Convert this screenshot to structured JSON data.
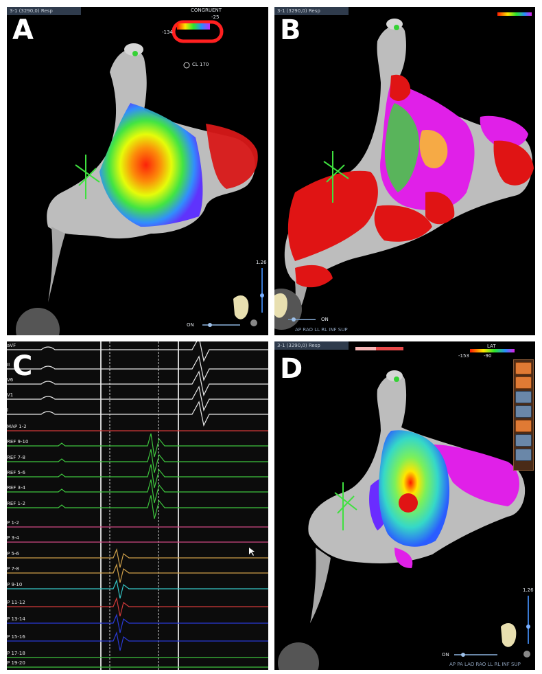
{
  "panels": {
    "a": {
      "label": "A",
      "topbar": "3-1 (3290,0) Resp",
      "legend_header": "CONGRUENT",
      "legend_max": "-25",
      "legend_min": "-134",
      "cl_text": "CL 170",
      "scale_value": "1.26",
      "toggle_label": "ON"
    },
    "b": {
      "label": "B",
      "topbar": "3-1 (3290,0) Resp",
      "toggle_label": "ON",
      "view_buttons": "AP RAO LL RL INF SUP"
    },
    "c": {
      "label": "C",
      "leads": [
        "aVF",
        "II",
        "V6",
        "V1",
        "I",
        "MAP 1-2",
        "REF 9-10",
        "REF 7-8",
        "REF 5-6",
        "REF 3-4",
        "REF 1-2",
        "P 1-2",
        "P 3-4",
        "P 5-6",
        "P 7-8",
        "P 9-10",
        "P 11-12",
        "P 13-14",
        "P 15-16",
        "P 17-18",
        "P 19-20"
      ]
    },
    "d": {
      "label": "D",
      "topbar": "3-1 (3290,0) Resp",
      "legend_min": "-153",
      "legend_max": "-90",
      "legend_tag": "LAT",
      "scale_value": "1.26",
      "toggle_label": "ON",
      "view_buttons": "AP PA LAO RAO LL RL INF SUP"
    }
  },
  "colors": {
    "anatomy": "#b9b9b9",
    "scar_red": "#e01414",
    "magenta": "#e020e8",
    "ecg_white": "#e9e9e9",
    "ref_green": "#3ec63e",
    "map_red": "#d23a3a",
    "p_pink": "#d24a86",
    "p_orange": "#cfa04a",
    "p_cyan": "#35c6c6",
    "p_blue": "#2a3ad6"
  }
}
